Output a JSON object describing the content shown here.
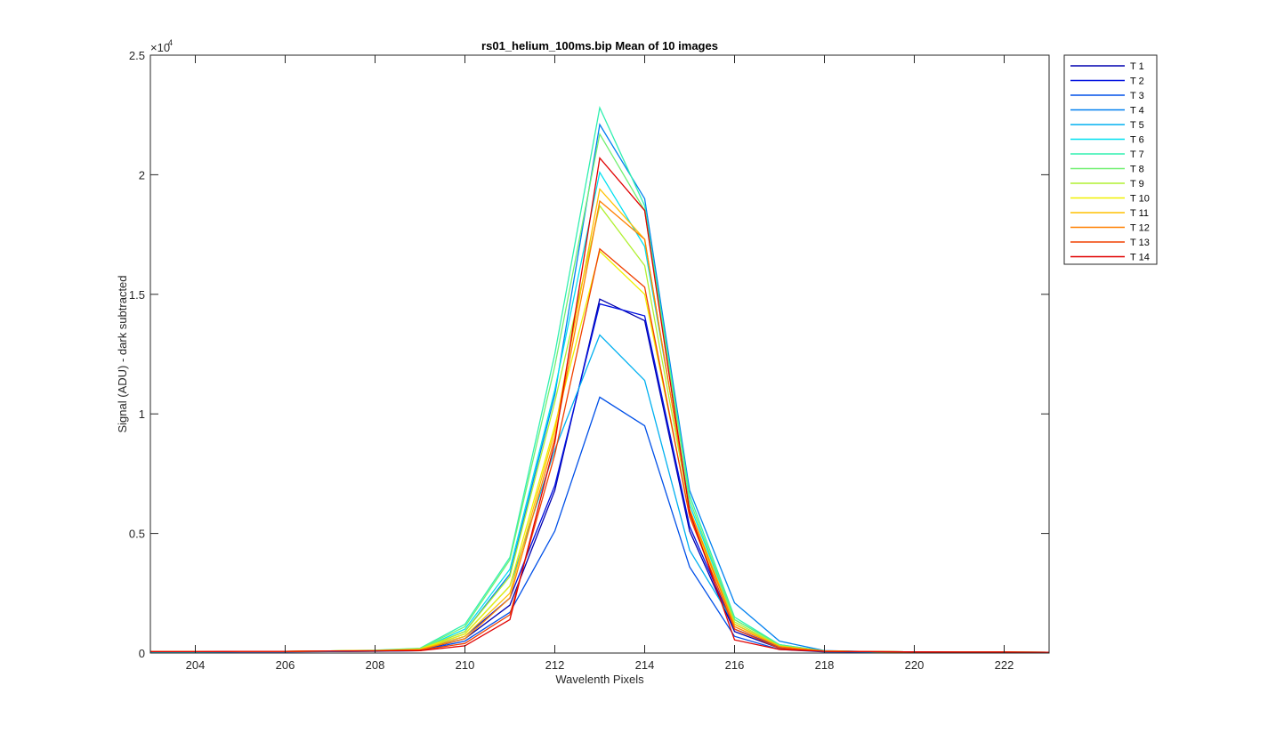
{
  "chart_data": {
    "type": "line",
    "title": "rs01_helium_100ms.bip  Mean of 10 images",
    "xlabel": "Wavelenth Pixels",
    "ylabel": "Signal (ADU) - dark subtracted",
    "xlim": [
      203,
      223
    ],
    "ylim": [
      0,
      25000
    ],
    "xticks": [
      204,
      206,
      208,
      210,
      212,
      214,
      216,
      218,
      220,
      222
    ],
    "yticks": [
      0,
      5000,
      10000,
      15000,
      20000,
      25000
    ],
    "ytick_labels": [
      "0",
      "0.5",
      "1",
      "1.5",
      "2",
      "2.5"
    ],
    "y_exponent_base": "×10",
    "y_exponent_power": "4",
    "legend_position": "outside-top-right",
    "grid": false,
    "x": [
      203,
      204,
      205,
      206,
      207,
      208,
      209,
      210,
      211,
      212,
      213,
      214,
      215,
      216,
      217,
      218,
      219,
      220,
      221,
      222,
      223
    ],
    "series": [
      {
        "name": "T 1",
        "color": "#0000b0",
        "values": [
          50,
          50,
          60,
          60,
          70,
          80,
          100,
          600,
          2000,
          6800,
          14800,
          13900,
          5100,
          900,
          200,
          60,
          50,
          40,
          40,
          30,
          30
        ]
      },
      {
        "name": "T 2",
        "color": "#0010e0",
        "values": [
          50,
          50,
          60,
          60,
          70,
          80,
          120,
          700,
          2300,
          7000,
          14600,
          14100,
          5300,
          1000,
          250,
          70,
          50,
          40,
          40,
          30,
          30
        ]
      },
      {
        "name": "T 3",
        "color": "#0050e8",
        "values": [
          40,
          40,
          50,
          50,
          60,
          70,
          100,
          500,
          1700,
          5100,
          10700,
          9500,
          3600,
          700,
          150,
          50,
          40,
          40,
          30,
          30,
          30
        ]
      },
      {
        "name": "T 4",
        "color": "#0080f0",
        "values": [
          50,
          50,
          60,
          60,
          80,
          100,
          150,
          900,
          3300,
          10800,
          22100,
          19000,
          6800,
          2100,
          500,
          100,
          60,
          50,
          40,
          40,
          30
        ]
      },
      {
        "name": "T 5",
        "color": "#00b0f0",
        "values": [
          50,
          50,
          60,
          60,
          70,
          90,
          130,
          800,
          2800,
          8500,
          13300,
          11400,
          4300,
          1200,
          300,
          80,
          50,
          40,
          40,
          30,
          30
        ]
      },
      {
        "name": "T 6",
        "color": "#00e0f0",
        "values": [
          50,
          50,
          60,
          60,
          80,
          100,
          160,
          1000,
          3500,
          11000,
          20100,
          17000,
          6200,
          1400,
          350,
          90,
          60,
          50,
          40,
          40,
          30
        ]
      },
      {
        "name": "T 7",
        "color": "#30f0b0",
        "values": [
          60,
          60,
          70,
          70,
          90,
          120,
          200,
          1200,
          4000,
          12500,
          22800,
          18700,
          6600,
          1500,
          350,
          90,
          60,
          50,
          40,
          40,
          30
        ]
      },
      {
        "name": "T 8",
        "color": "#70f070",
        "values": [
          60,
          60,
          70,
          70,
          90,
          110,
          190,
          1100,
          3900,
          12000,
          21700,
          18500,
          6400,
          1400,
          330,
          90,
          60,
          50,
          40,
          40,
          30
        ]
      },
      {
        "name": "T 9",
        "color": "#b0f030",
        "values": [
          60,
          60,
          70,
          70,
          90,
          100,
          170,
          900,
          3200,
          10500,
          18700,
          16200,
          6000,
          1300,
          300,
          80,
          60,
          50,
          40,
          40,
          30
        ]
      },
      {
        "name": "T 10",
        "color": "#f0f000",
        "values": [
          60,
          60,
          70,
          70,
          90,
          100,
          160,
          800,
          2800,
          9500,
          16800,
          15000,
          5800,
          1200,
          280,
          80,
          60,
          50,
          40,
          40,
          30
        ]
      },
      {
        "name": "T 11",
        "color": "#ffc000",
        "values": [
          60,
          60,
          70,
          70,
          90,
          100,
          150,
          700,
          2500,
          9300,
          19400,
          17300,
          6000,
          1200,
          280,
          80,
          60,
          50,
          40,
          40,
          30
        ]
      },
      {
        "name": "T 12",
        "color": "#ff8000",
        "values": [
          60,
          60,
          70,
          70,
          80,
          100,
          140,
          600,
          2300,
          9000,
          18900,
          17300,
          6000,
          1100,
          260,
          80,
          60,
          50,
          40,
          40,
          30
        ]
      },
      {
        "name": "T 13",
        "color": "#f04000",
        "values": [
          60,
          60,
          70,
          70,
          80,
          90,
          120,
          400,
          1600,
          8300,
          16900,
          15300,
          5700,
          1000,
          200,
          70,
          60,
          50,
          40,
          40,
          30
        ]
      },
      {
        "name": "T 14",
        "color": "#e00000",
        "values": [
          60,
          60,
          70,
          70,
          80,
          90,
          100,
          300,
          1400,
          8800,
          20700,
          18500,
          5900,
          550,
          150,
          70,
          60,
          50,
          40,
          40,
          30
        ]
      }
    ]
  }
}
